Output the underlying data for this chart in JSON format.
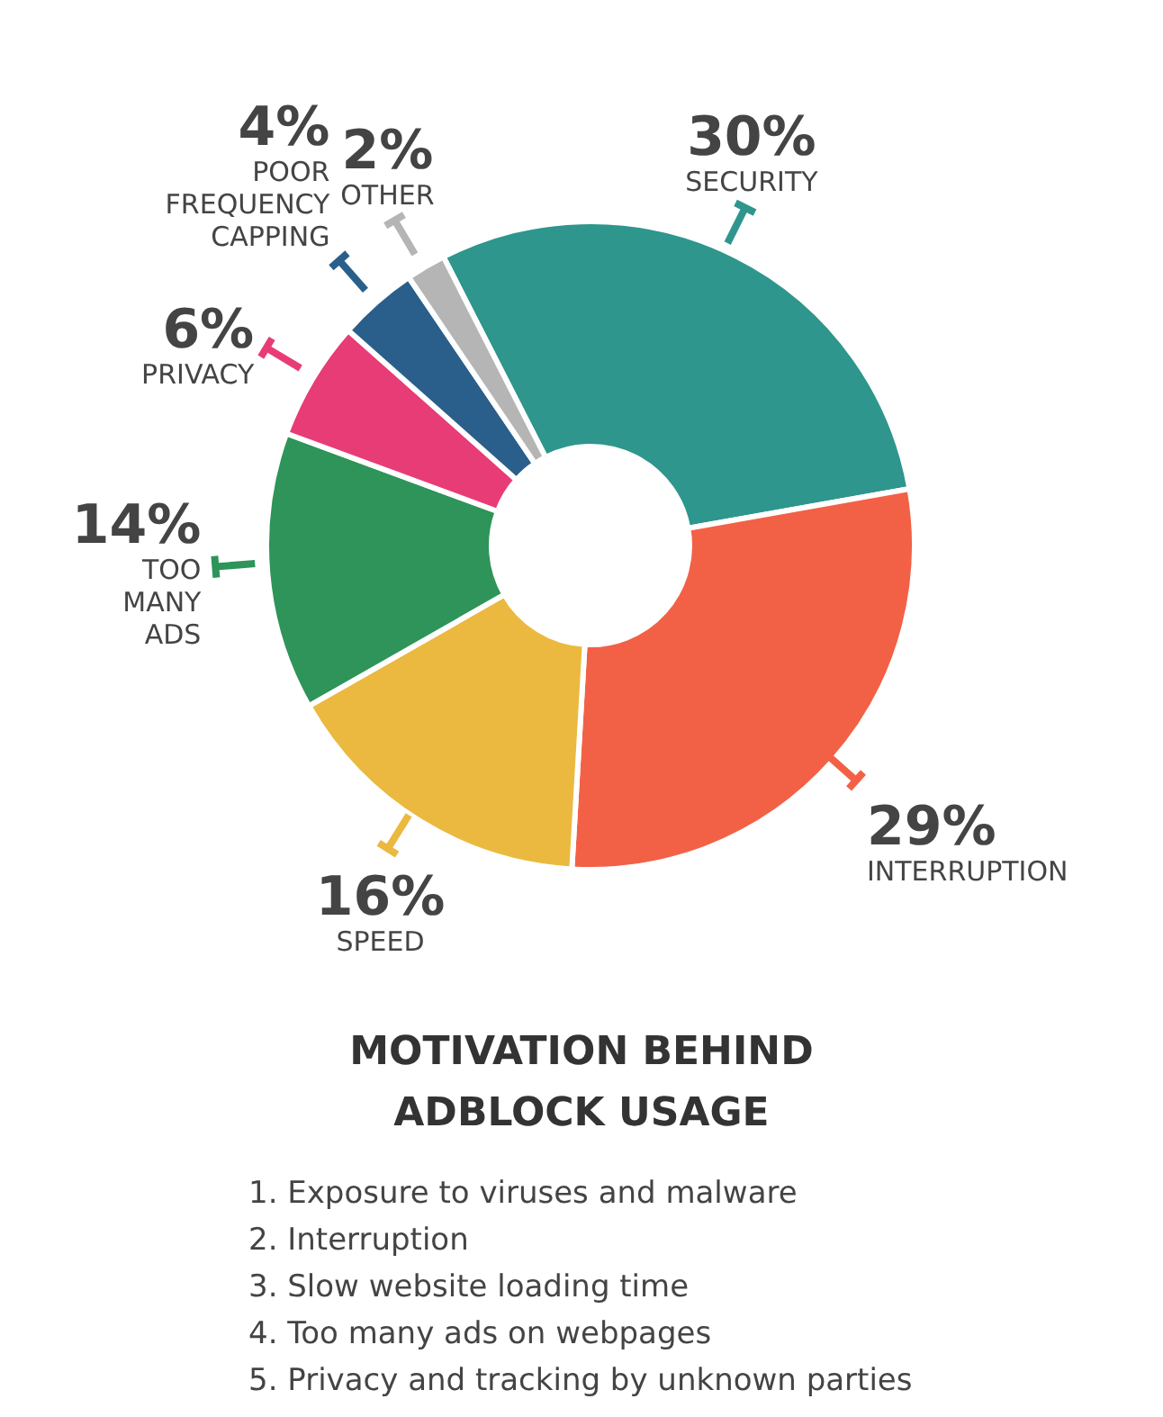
{
  "chart_data": {
    "type": "donut",
    "title": "MOTIVATION BEHIND\nADBLOCK USAGE",
    "categories": [
      "SECURITY",
      "INTERRUPTION",
      "SPEED",
      "TOO\nMANY\nADS",
      "PRIVACY",
      "POOR\nFREQUENCY\nCAPPING",
      "OTHER"
    ],
    "values": [
      30,
      29,
      16,
      14,
      6,
      4,
      2
    ],
    "colors": [
      "#2e968c",
      "#f26146",
      "#ebb93f",
      "#2e9459",
      "#e83c76",
      "#2a5f8c",
      "#b5b5b5"
    ],
    "value_labels": [
      "30%",
      "29%",
      "16%",
      "14%",
      "6%",
      "4%",
      "2%"
    ],
    "annotations": [
      "1. Exposure to viruses and malware",
      "2. Interruption",
      "3. Slow website loading time",
      "4. Too many ads on webpages",
      "5. Privacy and tracking by unknown parties"
    ]
  }
}
